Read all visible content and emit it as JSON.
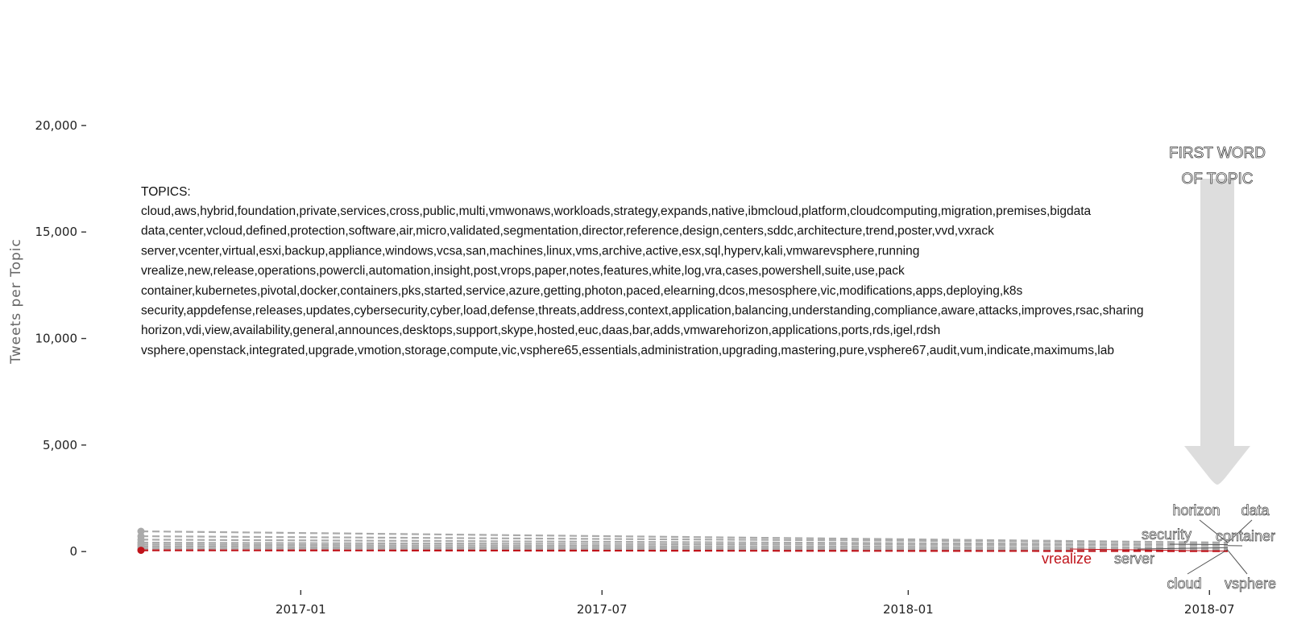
{
  "chart_data": {
    "type": "line",
    "title": "",
    "xlabel": "",
    "ylabel": "Tweets per Topic",
    "ylim": [
      -900,
      24000
    ],
    "y_ticks": [
      0,
      5000,
      10000,
      15000,
      20000
    ],
    "y_tick_labels": [
      "0",
      "5,000",
      "10,000",
      "15,000",
      "20,000"
    ],
    "x_range": [
      "2016-09-27",
      "2018-07-12"
    ],
    "x_ticks": [
      "2017-01-01",
      "2017-07-01",
      "2018-01-01",
      "2018-07-01"
    ],
    "x_tick_labels": [
      "2017-01",
      "2017-07",
      "2018-01",
      "2018-07"
    ],
    "grid": false,
    "legend": "none",
    "topics_heading": "TOPICS:",
    "topics_lines": [
      "cloud,aws,hybrid,foundation,private,services,cross,public,multi,vmwonaws,workloads,strategy,expands,native,ibmcloud,platform,cloudcomputing,migration,premises,bigdata",
      "data,center,vcloud,defined,protection,software,air,micro,validated,segmentation,director,reference,design,centers,sddc,architecture,trend,poster,vvd,vxrack",
      "server,vcenter,virtual,esxi,backup,appliance,windows,vcsa,san,machines,linux,vms,archive,active,esx,sql,hyperv,kali,vmwarevsphere,running",
      "vrealize,new,release,operations,powercli,automation,insight,post,vrops,paper,notes,features,white,log,vra,cases,powershell,suite,use,pack",
      "container,kubernetes,pivotal,docker,containers,pks,started,service,azure,getting,photon,paced,elearning,dcos,mesosphere,vic,modifications,apps,deploying,k8s",
      "security,appdefense,releases,updates,cybersecurity,cyber,load,defense,threats,address,context,application,balancing,understanding,compliance,aware,attacks,improves,rsac,sharing",
      "horizon,vdi,view,availability,general,announces,desktops,support,skype,hosted,euc,daas,bar,adds,vmwarehorizon,applications,ports,rds,igel,rdsh",
      "vsphere,openstack,integrated,upgrade,vmotion,storage,compute,vic,vsphere65,essentials,administration,upgrading,mastering,pure,vsphere67,audit,vum,indicate,maximums,lab"
    ],
    "callout": [
      "FIRST WORD",
      "OF TOPIC"
    ],
    "series": [
      {
        "name": "horizon",
        "color": "#aaaaaa",
        "start_value": 950,
        "end_value": 420,
        "dates": [
          "2016-09-27",
          "2018-07-12"
        ]
      },
      {
        "name": "data",
        "color": "#aaaaaa",
        "start_value": 720,
        "end_value": 420,
        "dates": [
          "2016-09-27",
          "2018-07-12"
        ]
      },
      {
        "name": "security",
        "color": "#aaaaaa",
        "start_value": 560,
        "end_value": 330,
        "dates": [
          "2016-09-27",
          "2018-07-12"
        ]
      },
      {
        "name": "container",
        "color": "#aaaaaa",
        "start_value": 420,
        "end_value": 280,
        "dates": [
          "2016-09-27",
          "2018-07-12"
        ]
      },
      {
        "name": "server",
        "color": "#aaaaaa",
        "start_value": 330,
        "end_value": 180,
        "dates": [
          "2016-09-27",
          "2018-07-12"
        ]
      },
      {
        "name": "cloud",
        "color": "#aaaaaa",
        "start_value": 240,
        "end_value": 100,
        "dates": [
          "2016-09-27",
          "2018-07-12"
        ]
      },
      {
        "name": "vsphere",
        "color": "#aaaaaa",
        "start_value": 150,
        "end_value": 60,
        "dates": [
          "2016-09-27",
          "2018-07-12"
        ]
      },
      {
        "name": "vrealize",
        "color": "#c0141b",
        "start_value": 60,
        "end_value": 20,
        "dates": [
          "2016-09-27",
          "2018-07-12"
        ]
      }
    ]
  }
}
